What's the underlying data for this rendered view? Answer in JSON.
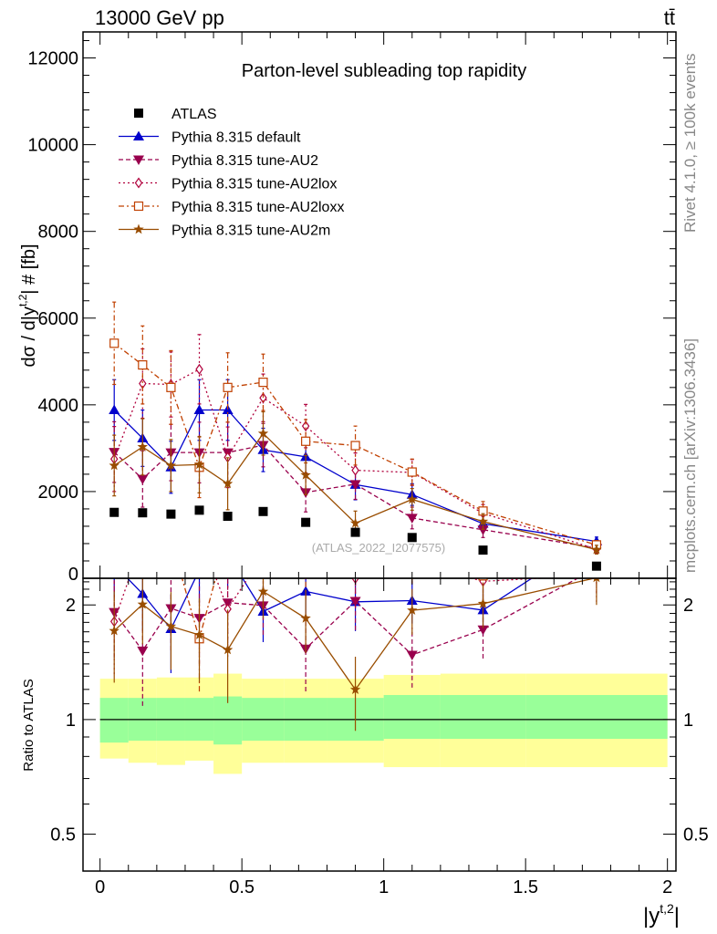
{
  "header": {
    "left": "13000 GeV pp",
    "right": "tt̄"
  },
  "side_labels": {
    "rivet": "Rivet 4.1.0, ≥ 100k events",
    "mcplots": "mcplots.cern.ch [arXiv:1306.3436]"
  },
  "chart_data": {
    "type": "scatter",
    "title": "Parton-level subleading top rapidity",
    "watermark": "(ATLAS_2022_I2077575)",
    "xlabel": "|y^{t,2}|",
    "ylabel": "dσ / d|y^{t,2}| # [fb]",
    "ratio_ylabel": "Ratio to ATLAS",
    "xlim": [
      -0.06,
      2.03
    ],
    "ylim": [
      0,
      12600
    ],
    "ratio_ylim": [
      0.4,
      2.35
    ],
    "x_ticks": [
      "0",
      "0.5",
      "1",
      "1.5",
      "2"
    ],
    "y_ticks": [
      "0",
      "2000",
      "4000",
      "6000",
      "8000",
      "10000",
      "12000"
    ],
    "ratio_ticks": [
      "0.5",
      "1",
      "2"
    ],
    "bins": [
      [
        0.0,
        0.1
      ],
      [
        0.1,
        0.2
      ],
      [
        0.2,
        0.3
      ],
      [
        0.3,
        0.4
      ],
      [
        0.4,
        0.5
      ],
      [
        0.5,
        0.65
      ],
      [
        0.65,
        0.8
      ],
      [
        0.8,
        1.0
      ],
      [
        1.0,
        1.2
      ],
      [
        1.2,
        1.5
      ],
      [
        1.5,
        2.0
      ]
    ],
    "x": [
      0.05,
      0.15,
      0.25,
      0.35,
      0.45,
      0.575,
      0.725,
      0.9,
      1.1,
      1.35,
      1.75
    ],
    "data": {
      "name": "ATLAS",
      "values": [
        1520,
        1510,
        1480,
        1570,
        1430,
        1540,
        1290,
        1060,
        940,
        650,
        280
      ],
      "band_inner": [
        [
          0.87,
          1.14
        ],
        [
          0.88,
          1.14
        ],
        [
          0.88,
          1.14
        ],
        [
          0.88,
          1.14
        ],
        [
          0.86,
          1.15
        ],
        [
          0.88,
          1.14
        ],
        [
          0.88,
          1.14
        ],
        [
          0.88,
          1.14
        ],
        [
          0.89,
          1.16
        ],
        [
          0.89,
          1.16
        ],
        [
          0.89,
          1.16
        ]
      ],
      "band_outer": [
        [
          0.79,
          1.28
        ],
        [
          0.77,
          1.28
        ],
        [
          0.76,
          1.29
        ],
        [
          0.78,
          1.29
        ],
        [
          0.72,
          1.32
        ],
        [
          0.77,
          1.28
        ],
        [
          0.77,
          1.28
        ],
        [
          0.77,
          1.28
        ],
        [
          0.75,
          1.31
        ],
        [
          0.75,
          1.32
        ],
        [
          0.75,
          1.32
        ]
      ]
    },
    "series": [
      {
        "name": "Pythia 8.315 default",
        "color": "#0000cc",
        "dash": "",
        "marker": "triangle-up",
        "values": [
          3880,
          3230,
          2560,
          3880,
          3880,
          2960,
          2800,
          2160,
          1930,
          1260,
          850
        ],
        "errors": [
          700,
          650,
          600,
          700,
          700,
          500,
          450,
          350,
          250,
          180,
          100
        ]
      },
      {
        "name": "Pythia 8.315 tune-AU2",
        "color": "#99004d",
        "dash": "5,3",
        "marker": "triangle-down",
        "values": [
          2910,
          2290,
          2900,
          2900,
          2900,
          3070,
          1980,
          2170,
          1390,
          1120,
          700
        ],
        "errors": [
          700,
          650,
          650,
          700,
          700,
          500,
          450,
          350,
          250,
          180,
          100
        ]
      },
      {
        "name": "Pythia 8.315 tune-AU2lox",
        "color": "#b0003c",
        "dash": "2,3",
        "marker": "diamond-open",
        "values": [
          2750,
          4490,
          4470,
          4820,
          2790,
          4160,
          3510,
          2490,
          2440,
          1500,
          670
        ],
        "errors": [
          750,
          800,
          750,
          800,
          700,
          550,
          500,
          400,
          300,
          200,
          100
        ]
      },
      {
        "name": "Pythia 8.315 tune-AU2loxx",
        "color": "#c04000",
        "dash": "6,3,2,3",
        "marker": "square-open",
        "values": [
          5420,
          4920,
          4400,
          2560,
          4400,
          4520,
          3160,
          3060,
          2450,
          1550,
          770
        ],
        "errors": [
          950,
          900,
          850,
          700,
          800,
          650,
          500,
          450,
          300,
          220,
          100
        ]
      },
      {
        "name": "Pythia 8.315 tune-AU2m",
        "color": "#994d00",
        "dash": "",
        "marker": "star",
        "values": [
          2600,
          3030,
          2600,
          2620,
          2180,
          3340,
          2380,
          1270,
          1820,
          1310,
          660
        ],
        "errors": [
          700,
          650,
          600,
          650,
          600,
          500,
          450,
          280,
          250,
          180,
          100
        ]
      }
    ],
    "legend_position": "top-left"
  }
}
